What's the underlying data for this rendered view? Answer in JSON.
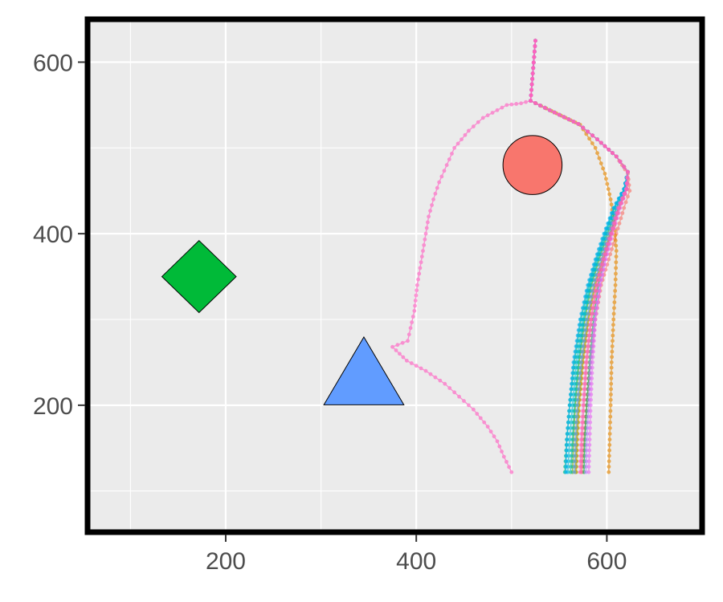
{
  "chart_data": {
    "type": "scatter",
    "title": "",
    "xlabel": "",
    "ylabel": "",
    "xlim": [
      55,
      700
    ],
    "ylim": [
      52,
      650
    ],
    "x_ticks": [
      200,
      400,
      600
    ],
    "y_ticks": [
      200,
      400,
      600
    ],
    "x_tick_labels": [
      "200",
      "400",
      "600"
    ],
    "y_tick_labels": [
      "200",
      "400",
      "600"
    ],
    "x_minor_ticks": [
      100,
      300,
      500
    ],
    "y_minor_ticks": [
      100,
      300,
      500
    ],
    "grid": true,
    "panel_color": "#ebebeb",
    "legend": "none",
    "landmarks": [
      {
        "shape": "circle",
        "x": 522,
        "y": 480,
        "radius": 31,
        "color": "#f8766d"
      },
      {
        "shape": "diamond",
        "x": 172,
        "y": 350,
        "half_width": 39,
        "half_height": 42,
        "color": "#00ba38"
      },
      {
        "shape": "triangle",
        "x": 345,
        "y": 240,
        "base_width": 84,
        "height": 79,
        "color": "#619cff"
      }
    ],
    "trajectories": [
      {
        "color": "#f8766d",
        "points": [
          [
            525,
            625
          ],
          [
            520,
            555
          ],
          [
            540,
            544
          ],
          [
            570,
            528
          ],
          [
            590,
            510
          ],
          [
            610,
            490
          ],
          [
            622,
            470
          ],
          [
            624,
            450
          ],
          [
            618,
            430
          ],
          [
            610,
            400
          ],
          [
            602,
            370
          ],
          [
            594,
            340
          ],
          [
            588,
            300
          ],
          [
            583,
            250
          ],
          [
            579,
            200
          ],
          [
            576,
            160
          ],
          [
            574,
            122
          ]
        ]
      },
      {
        "color": "#e58700",
        "points": [
          [
            525,
            625
          ],
          [
            520,
            555
          ],
          [
            542,
            543
          ],
          [
            572,
            527
          ],
          [
            588,
            500
          ],
          [
            598,
            470
          ],
          [
            604,
            440
          ],
          [
            608,
            410
          ],
          [
            610,
            380
          ],
          [
            609,
            340
          ],
          [
            607,
            300
          ],
          [
            605,
            250
          ],
          [
            604,
            200
          ],
          [
            603,
            160
          ],
          [
            602,
            122
          ]
        ]
      },
      {
        "color": "#c99800",
        "points": [
          [
            525,
            625
          ],
          [
            520,
            555
          ],
          [
            540,
            544
          ],
          [
            570,
            528
          ],
          [
            590,
            510
          ],
          [
            610,
            490
          ],
          [
            622,
            472
          ],
          [
            621,
            452
          ],
          [
            613,
            430
          ],
          [
            604,
            400
          ],
          [
            596,
            370
          ],
          [
            588,
            340
          ],
          [
            581,
            300
          ],
          [
            575,
            250
          ],
          [
            571,
            200
          ],
          [
            569,
            160
          ],
          [
            568,
            122
          ]
        ]
      },
      {
        "color": "#a3a500",
        "points": [
          [
            525,
            625
          ],
          [
            520,
            555
          ],
          [
            540,
            544
          ],
          [
            570,
            528
          ],
          [
            590,
            510
          ],
          [
            610,
            490
          ],
          [
            622,
            472
          ],
          [
            620,
            452
          ],
          [
            612,
            430
          ],
          [
            603,
            400
          ],
          [
            595,
            370
          ],
          [
            587,
            340
          ],
          [
            580,
            300
          ],
          [
            574,
            250
          ],
          [
            570,
            200
          ],
          [
            568,
            160
          ],
          [
            567,
            122
          ]
        ]
      },
      {
        "color": "#6bb100",
        "points": [
          [
            525,
            625
          ],
          [
            520,
            555
          ],
          [
            540,
            544
          ],
          [
            570,
            528
          ],
          [
            590,
            510
          ],
          [
            610,
            490
          ],
          [
            622,
            472
          ],
          [
            619,
            452
          ],
          [
            610,
            430
          ],
          [
            601,
            400
          ],
          [
            592,
            370
          ],
          [
            584,
            340
          ],
          [
            577,
            300
          ],
          [
            571,
            250
          ],
          [
            567,
            200
          ],
          [
            565,
            160
          ],
          [
            564,
            122
          ]
        ]
      },
      {
        "color": "#00ba38",
        "points": [
          [
            525,
            625
          ],
          [
            520,
            555
          ],
          [
            540,
            544
          ],
          [
            570,
            528
          ],
          [
            590,
            510
          ],
          [
            610,
            490
          ],
          [
            622,
            472
          ],
          [
            620,
            452
          ],
          [
            612,
            430
          ],
          [
            604,
            400
          ],
          [
            597,
            370
          ],
          [
            591,
            340
          ],
          [
            586,
            300
          ],
          [
            582,
            250
          ],
          [
            579,
            200
          ],
          [
            577,
            160
          ],
          [
            576,
            122
          ]
        ]
      },
      {
        "color": "#00bf7d",
        "points": [
          [
            525,
            625
          ],
          [
            520,
            555
          ],
          [
            540,
            544
          ],
          [
            570,
            528
          ],
          [
            590,
            510
          ],
          [
            610,
            490
          ],
          [
            622,
            472
          ],
          [
            618,
            452
          ],
          [
            608,
            430
          ],
          [
            598,
            400
          ],
          [
            589,
            370
          ],
          [
            581,
            340
          ],
          [
            573,
            300
          ],
          [
            566,
            250
          ],
          [
            561,
            200
          ],
          [
            558,
            160
          ],
          [
            556,
            122
          ]
        ]
      },
      {
        "color": "#00c0af",
        "points": [
          [
            525,
            625
          ],
          [
            520,
            555
          ],
          [
            540,
            544
          ],
          [
            570,
            528
          ],
          [
            590,
            510
          ],
          [
            610,
            490
          ],
          [
            622,
            472
          ],
          [
            619,
            452
          ],
          [
            610,
            430
          ],
          [
            600,
            400
          ],
          [
            591,
            370
          ],
          [
            583,
            340
          ],
          [
            576,
            300
          ],
          [
            570,
            250
          ],
          [
            566,
            200
          ],
          [
            564,
            160
          ],
          [
            562,
            122
          ]
        ]
      },
      {
        "color": "#00bcd8",
        "points": [
          [
            525,
            625
          ],
          [
            520,
            555
          ],
          [
            540,
            544
          ],
          [
            570,
            528
          ],
          [
            590,
            510
          ],
          [
            610,
            490
          ],
          [
            622,
            472
          ],
          [
            618,
            452
          ],
          [
            608,
            430
          ],
          [
            599,
            400
          ],
          [
            590,
            370
          ],
          [
            582,
            340
          ],
          [
            575,
            300
          ],
          [
            568,
            250
          ],
          [
            564,
            200
          ],
          [
            561,
            160
          ],
          [
            559,
            122
          ]
        ]
      },
      {
        "color": "#00b0f6",
        "points": [
          [
            525,
            625
          ],
          [
            520,
            555
          ],
          [
            540,
            544
          ],
          [
            570,
            528
          ],
          [
            590,
            510
          ],
          [
            610,
            490
          ],
          [
            622,
            472
          ],
          [
            618,
            452
          ],
          [
            607,
            430
          ],
          [
            597,
            400
          ],
          [
            588,
            370
          ],
          [
            580,
            340
          ],
          [
            572,
            300
          ],
          [
            565,
            250
          ],
          [
            561,
            200
          ],
          [
            558,
            160
          ],
          [
            557,
            122
          ]
        ]
      },
      {
        "color": "#619cff",
        "points": [
          [
            525,
            625
          ],
          [
            520,
            555
          ],
          [
            540,
            544
          ],
          [
            570,
            528
          ],
          [
            590,
            510
          ],
          [
            610,
            490
          ],
          [
            622,
            472
          ],
          [
            620,
            452
          ],
          [
            611,
            430
          ],
          [
            602,
            400
          ],
          [
            594,
            370
          ],
          [
            586,
            340
          ],
          [
            579,
            300
          ],
          [
            573,
            250
          ],
          [
            569,
            200
          ],
          [
            567,
            160
          ],
          [
            566,
            122
          ]
        ]
      },
      {
        "color": "#b983ff",
        "points": [
          [
            525,
            625
          ],
          [
            520,
            555
          ],
          [
            540,
            544
          ],
          [
            570,
            528
          ],
          [
            590,
            510
          ],
          [
            610,
            490
          ],
          [
            622,
            472
          ],
          [
            621,
            452
          ],
          [
            613,
            430
          ],
          [
            605,
            400
          ],
          [
            598,
            370
          ],
          [
            592,
            340
          ],
          [
            587,
            300
          ],
          [
            583,
            250
          ],
          [
            581,
            200
          ],
          [
            579,
            160
          ],
          [
            578,
            122
          ]
        ]
      },
      {
        "color": "#e76bf3",
        "points": [
          [
            525,
            625
          ],
          [
            520,
            555
          ],
          [
            540,
            544
          ],
          [
            570,
            528
          ],
          [
            590,
            510
          ],
          [
            610,
            490
          ],
          [
            622,
            472
          ],
          [
            621,
            452
          ],
          [
            614,
            430
          ],
          [
            606,
            400
          ],
          [
            599,
            370
          ],
          [
            593,
            340
          ],
          [
            588,
            300
          ],
          [
            585,
            250
          ],
          [
            583,
            200
          ],
          [
            582,
            160
          ],
          [
            581,
            122
          ]
        ]
      },
      {
        "color": "#fd61d1",
        "points": [
          [
            525,
            625
          ],
          [
            520,
            555
          ],
          [
            540,
            544
          ],
          [
            570,
            528
          ],
          [
            590,
            510
          ],
          [
            610,
            490
          ],
          [
            622,
            472
          ],
          [
            620,
            452
          ],
          [
            612,
            430
          ],
          [
            604,
            400
          ],
          [
            596,
            370
          ],
          [
            589,
            340
          ],
          [
            583,
            300
          ],
          [
            578,
            250
          ],
          [
            575,
            200
          ],
          [
            573,
            160
          ],
          [
            572,
            122
          ]
        ]
      },
      {
        "color": "#ff67a4",
        "points": [
          [
            525,
            625
          ],
          [
            520,
            555
          ],
          [
            540,
            544
          ],
          [
            570,
            528
          ],
          [
            590,
            510
          ],
          [
            610,
            490
          ],
          [
            622,
            472
          ],
          [
            621,
            452
          ],
          [
            613,
            430
          ],
          [
            605,
            400
          ],
          [
            597,
            370
          ],
          [
            590,
            340
          ],
          [
            584,
            300
          ],
          [
            579,
            250
          ],
          [
            576,
            200
          ],
          [
            574,
            160
          ],
          [
            573,
            122
          ]
        ]
      },
      {
        "color": "#ff61c3",
        "points": [
          [
            525,
            625
          ],
          [
            520,
            555
          ],
          [
            510,
            552
          ],
          [
            495,
            550
          ],
          [
            470,
            535
          ],
          [
            455,
            520
          ],
          [
            440,
            500
          ],
          [
            432,
            480
          ],
          [
            424,
            460
          ],
          [
            418,
            440
          ],
          [
            413,
            420
          ],
          [
            410,
            400
          ],
          [
            407,
            380
          ],
          [
            404,
            360
          ],
          [
            401,
            340
          ],
          [
            398,
            310
          ],
          [
            394,
            290
          ],
          [
            391,
            275
          ],
          [
            375,
            268
          ],
          [
            390,
            252
          ],
          [
            410,
            240
          ],
          [
            430,
            225
          ],
          [
            445,
            210
          ],
          [
            460,
            195
          ],
          [
            475,
            175
          ],
          [
            485,
            158
          ],
          [
            492,
            140
          ],
          [
            500,
            122
          ]
        ]
      }
    ]
  }
}
